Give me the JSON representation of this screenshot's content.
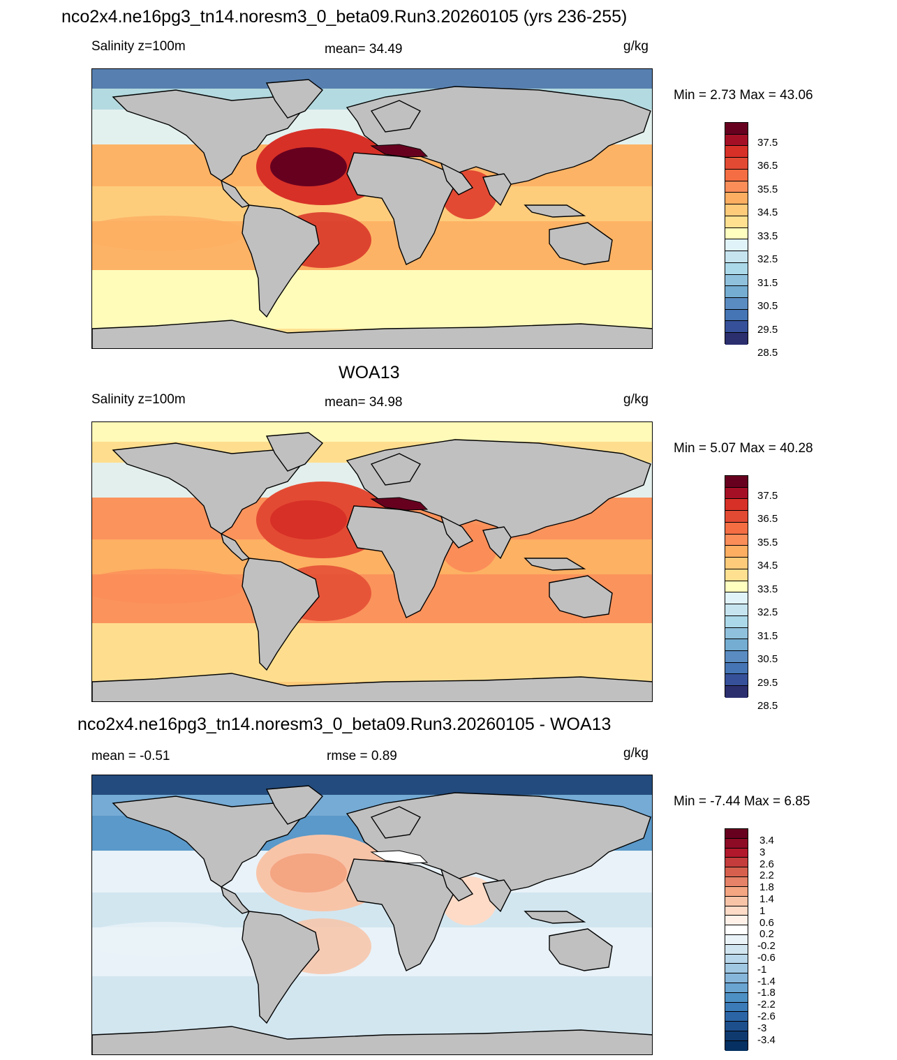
{
  "page_title": "nco2x4.ne16pg3_tn14.noresm3_0_beta09.Run3.20260105 (yrs 236-255)",
  "panels": [
    {
      "id": "model",
      "heading": "",
      "left_label": "Salinity z=100m",
      "center_label": "mean=  34.49",
      "right_label": "g/kg",
      "minmax": "Min =   2.73 Max =  43.06",
      "theme": "model"
    },
    {
      "id": "obs",
      "heading": "WOA13",
      "left_label": "Salinity z=100m",
      "center_label": "mean=  34.98",
      "right_label": "g/kg",
      "minmax": "Min =   5.07 Max =  40.28",
      "theme": "obs"
    },
    {
      "id": "diff",
      "heading": "nco2x4.ne16pg3_tn14.noresm3_0_beta09.Run3.20260105 - WOA13",
      "left_label": "mean =  -0.51",
      "center_label": "rmse =   0.89",
      "right_label": "g/kg",
      "minmax": "Min =  -7.44 Max =   6.85",
      "theme": "diff"
    }
  ],
  "colorbars": {
    "salinity": {
      "colors": [
        "#67001f",
        "#a50f26",
        "#d73027",
        "#e34a33",
        "#f46d43",
        "#fb8d59",
        "#fdae61",
        "#fdcb7a",
        "#fee090",
        "#ffffbf",
        "#e0f3f8",
        "#c6e4ef",
        "#abd9e9",
        "#8fc1dd",
        "#74add1",
        "#5a8cc2",
        "#4575b4",
        "#36519a",
        "#2b2f6e"
      ],
      "tick_labels": [
        "37.5",
        "36.5",
        "35.5",
        "34.5",
        "33.5",
        "32.5",
        "31.5",
        "30.5",
        "29.5",
        "28.5"
      ]
    },
    "difference": {
      "colors": [
        "#67001f",
        "#8e0b25",
        "#b2182b",
        "#c43c3c",
        "#d6604d",
        "#e58267",
        "#f4a582",
        "#f8c4a8",
        "#fddbc7",
        "#fff0e8",
        "#ffffff",
        "#eaf3f8",
        "#d1e5f0",
        "#b8d7ea",
        "#a0c8e3",
        "#86b6da",
        "#6aa4d1",
        "#4d90c4",
        "#3a7bb8",
        "#2b65a6",
        "#1d4f8c",
        "#0f3a70",
        "#053061"
      ],
      "tick_labels": [
        "3.4",
        "3",
        "2.6",
        "2.2",
        "1.8",
        "1.4",
        "1",
        "0.6",
        "0.2",
        "-0.2",
        "-0.6",
        "-1",
        "-1.4",
        "-1.8",
        "-2.2",
        "-2.6",
        "-3",
        "-3.4"
      ]
    }
  },
  "land_color": "#c0c0c0",
  "ocean_colors": {
    "model": {
      "polar_north": "#4575b4",
      "subpolar": "#abd9e9",
      "arctic_fresh": "#e0f3f8",
      "temperate": "#fee090",
      "subtropical": "#fdae61",
      "tropical": "#fdcb7a",
      "atlantic_core": "#d73027",
      "atlantic_peak": "#67001f",
      "southern": "#ffffbf",
      "med": "#67001f",
      "arabian": "#e34a33"
    },
    "obs": {
      "polar_north": "#ffffbf",
      "subpolar": "#fee090",
      "arctic_fresh": "#e0f3f8",
      "temperate": "#fdcb7a",
      "subtropical": "#fb8d59",
      "tropical": "#fdae61",
      "atlantic_core": "#e34a33",
      "atlantic_peak": "#d73027",
      "southern": "#fee090",
      "med": "#67001f",
      "arabian": "#fb8d59"
    },
    "diff": {
      "polar_north": "#0f3a70",
      "subpolar": "#6aa4d1",
      "arctic_fresh": "#4d90c4",
      "temperate": "#d1e5f0",
      "subtropical": "#eaf3f8",
      "tropical": "#d1e5f0",
      "atlantic_core": "#f8c4a8",
      "atlantic_peak": "#f4a582",
      "southern": "#d1e5f0",
      "med": "#ffffff",
      "arabian": "#fddbc7"
    }
  }
}
